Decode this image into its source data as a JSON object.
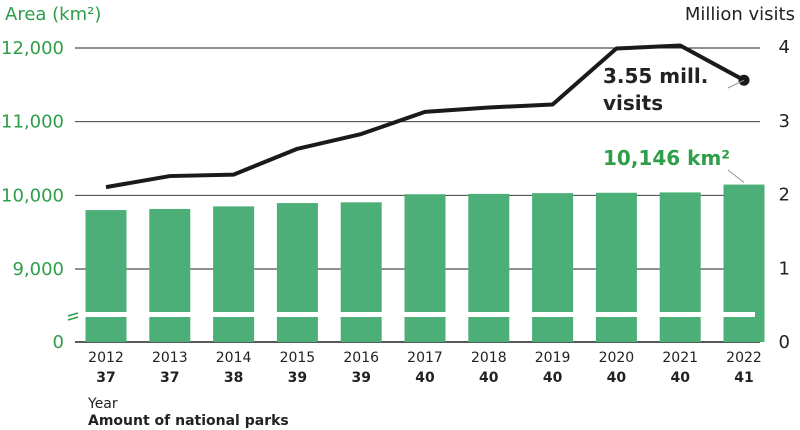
{
  "chart_data": {
    "type": "bar",
    "title": "",
    "y_left_label": "Area (km²)",
    "y_right_label": "Million visits",
    "x_label": "Year",
    "x_sublabel": "Amount of national parks",
    "categories": [
      "2012",
      "2013",
      "2014",
      "2015",
      "2016",
      "2017",
      "2018",
      "2019",
      "2020",
      "2021",
      "2022"
    ],
    "park_counts": [
      "37",
      "37",
      "38",
      "39",
      "39",
      "40",
      "40",
      "40",
      "40",
      "40",
      "41"
    ],
    "series": [
      {
        "name": "Area (km²)",
        "kind": "bar",
        "axis": "left",
        "color": "#4caf78",
        "values": [
          9800,
          9815,
          9850,
          9895,
          9905,
          10015,
          10020,
          10030,
          10035,
          10040,
          10146
        ]
      },
      {
        "name": "Million visits",
        "kind": "line",
        "axis": "right",
        "color": "#1a1a1a",
        "values": [
          2.1,
          2.25,
          2.27,
          2.62,
          2.82,
          3.12,
          3.18,
          3.22,
          3.98,
          4.02,
          3.55
        ]
      }
    ],
    "y_left_ticks": [
      "0",
      "9,000",
      "10,000",
      "11,000",
      "12,000"
    ],
    "y_left_tick_values": [
      0,
      9000,
      10000,
      11000,
      12000
    ],
    "y_left_range_broken": [
      8600,
      12000
    ],
    "y_right_ticks": [
      "0",
      "1",
      "2",
      "3",
      "4"
    ],
    "y_right_tick_values": [
      0,
      1,
      2,
      3,
      4
    ],
    "ylim_right": [
      0,
      4
    ],
    "axis_break": true,
    "grid": "horizontal",
    "annotations": [
      {
        "text_line1": "3.55 mill.",
        "text_line2": "visits",
        "series": "Million visits",
        "index": 10
      },
      {
        "text": "10,146 km²",
        "series": "Area (km²)",
        "index": 10
      }
    ]
  }
}
